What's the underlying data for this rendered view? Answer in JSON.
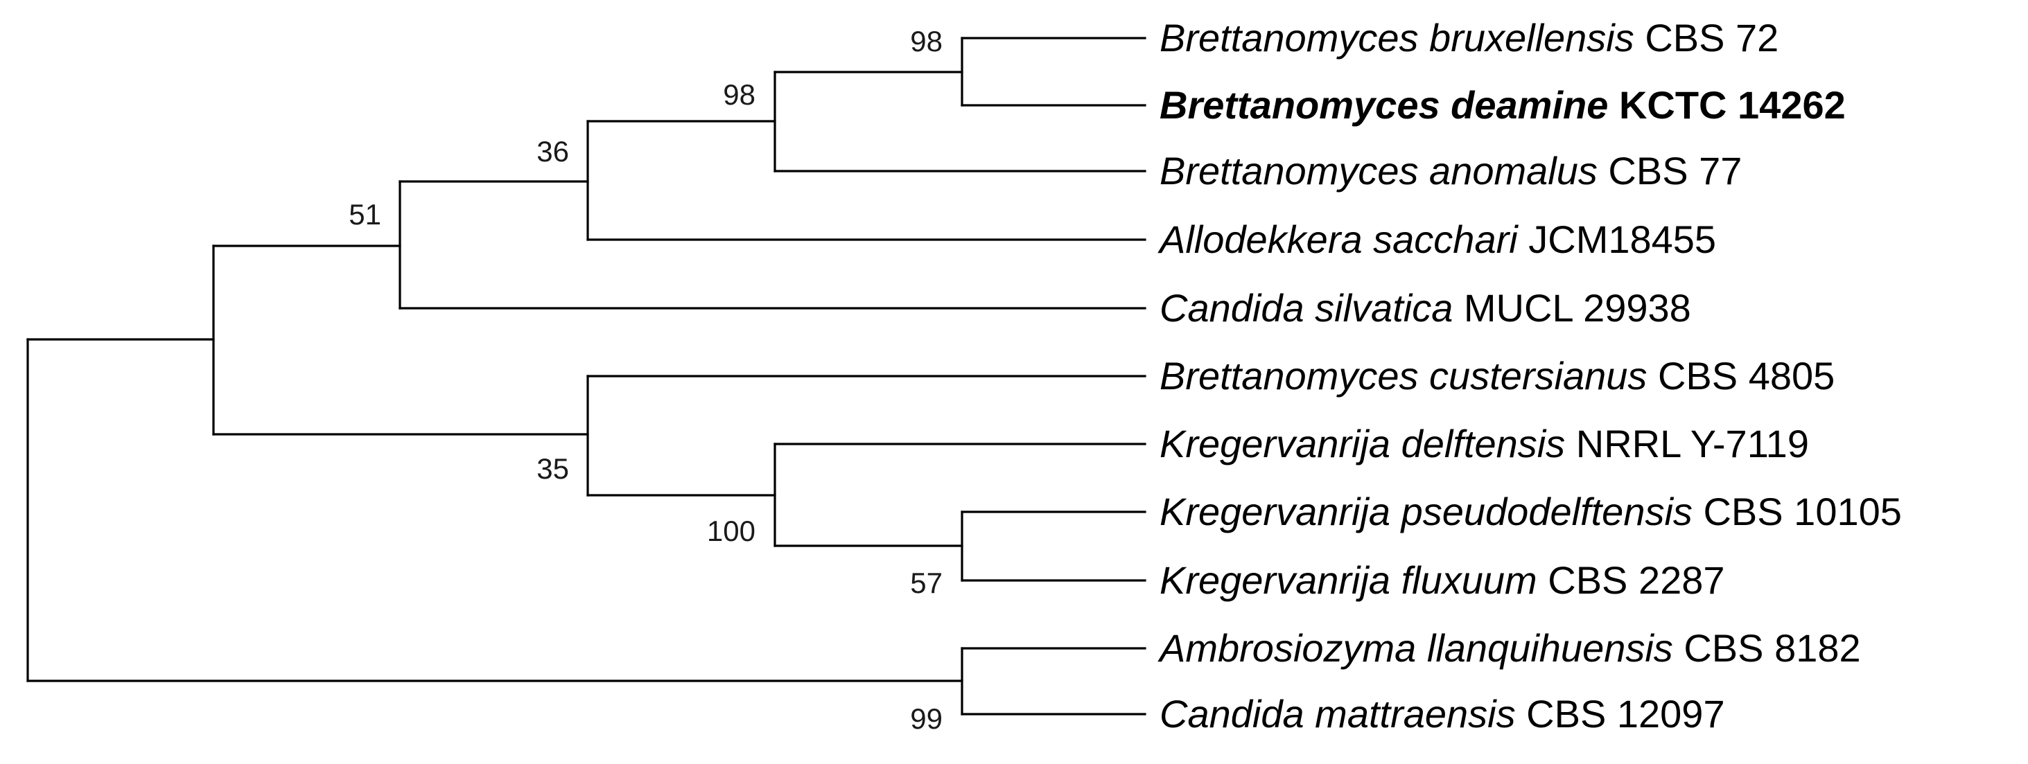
{
  "tree": {
    "taxa": [
      {
        "id": "bbrux",
        "species": "Brettanomyces bruxellensis",
        "strain": "CBS 72",
        "bold": false
      },
      {
        "id": "bdeam",
        "species": "Brettanomyces deamine",
        "strain": "KCTC 14262",
        "bold": true
      },
      {
        "id": "banom",
        "species": "Brettanomyces anomalus",
        "strain": "CBS 77",
        "bold": false
      },
      {
        "id": "asacc",
        "species": "Allodekkera sacchari",
        "strain": "JCM18455",
        "bold": false
      },
      {
        "id": "csilv",
        "species": "Candida silvatica",
        "strain": "MUCL 29938",
        "bold": false
      },
      {
        "id": "bcust",
        "species": "Brettanomyces custersianus",
        "strain": "CBS 4805",
        "bold": false
      },
      {
        "id": "kdelf",
        "species": "Kregervanrija delftensis",
        "strain": "NRRL Y-7119",
        "bold": false
      },
      {
        "id": "kpseu",
        "species": "Kregervanrija pseudodelftensis",
        "strain": "CBS 10105",
        "bold": false
      },
      {
        "id": "kflux",
        "species": "Kregervanrija fluxuum",
        "strain": "CBS 2287",
        "bold": false
      },
      {
        "id": "allan",
        "species": "Ambrosiozyma llanquihuensis",
        "strain": "CBS 8182",
        "bold": false
      },
      {
        "id": "cmatt",
        "species": "Candida mattraensis",
        "strain": "CBS 12097",
        "bold": false
      }
    ],
    "bootstrap": [
      {
        "node": "n_brux_deam",
        "value": "98"
      },
      {
        "node": "n_anom",
        "value": "98"
      },
      {
        "node": "n_sacc",
        "value": "36"
      },
      {
        "node": "n_silv",
        "value": "51"
      },
      {
        "node": "n_kreg_pf",
        "value": "57"
      },
      {
        "node": "n_kreg",
        "value": "100"
      },
      {
        "node": "n_cust",
        "value": "35"
      },
      {
        "node": "n_ambro",
        "value": "99"
      }
    ]
  }
}
